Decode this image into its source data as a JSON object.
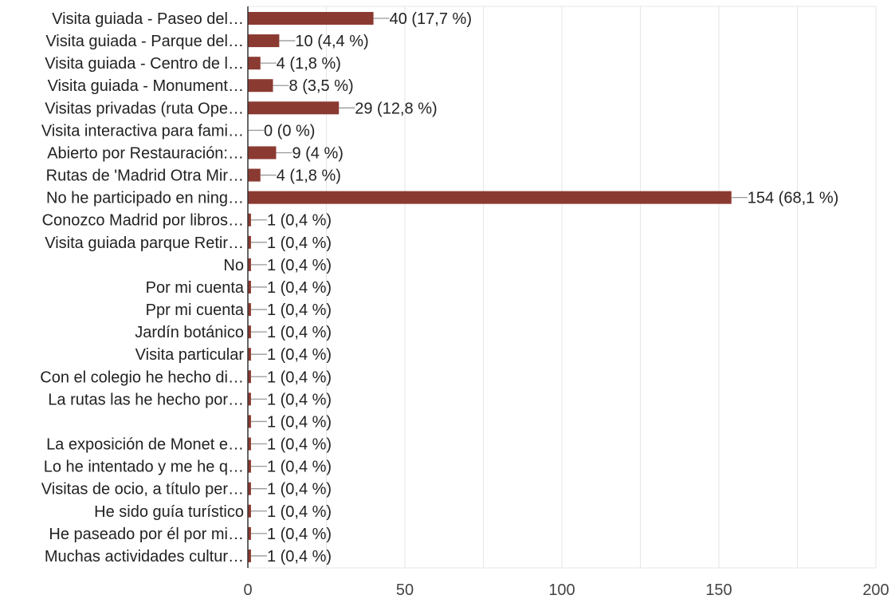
{
  "chart_data": {
    "type": "bar",
    "orientation": "horizontal",
    "categories": [
      "Visita guiada - Paseo del…",
      "Visita guiada - Parque del…",
      "Visita guiada - Centro de l…",
      "Visita guiada - Monument…",
      "Visitas privadas (ruta Ope…",
      "Visita interactiva para fami…",
      "Abierto por Restauración:…",
      "Rutas de 'Madrid Otra Mir…",
      "No he participado en ning…",
      "Conozco Madrid por libros…",
      "Visita guiada parque Retir…",
      "No",
      "Por mi cuenta",
      "Ppr mi cuenta",
      "Jardín botánico",
      "Visita particular",
      "Con el colegio he hecho di…",
      "La rutas las he hecho por…",
      "",
      "La exposición de Monet e…",
      "Lo he intentado y me he q…",
      "Visitas de ocio, a título per…",
      "He sido guía turístico",
      "He paseado por él por mi…",
      "Muchas actividades cultur…"
    ],
    "values": [
      40,
      10,
      4,
      8,
      29,
      0,
      9,
      4,
      154,
      1,
      1,
      1,
      1,
      1,
      1,
      1,
      1,
      1,
      1,
      1,
      1,
      1,
      1,
      1,
      1
    ],
    "value_labels": [
      "40 (17,7 %)",
      "10 (4,4 %)",
      "4 (1,8 %)",
      "8 (3,5 %)",
      "29 (12,8 %)",
      "0 (0 %)",
      "9 (4 %)",
      "4 (1,8 %)",
      "154 (68,1 %)",
      "1 (0,4 %)",
      "1 (0,4 %)",
      "1 (0,4 %)",
      "1 (0,4 %)",
      "1 (0,4 %)",
      "1 (0,4 %)",
      "1 (0,4 %)",
      "1 (0,4 %)",
      "1 (0,4 %)",
      "1 (0,4 %)",
      "1 (0,4 %)",
      "1 (0,4 %)",
      "1 (0,4 %)",
      "1 (0,4 %)",
      "1 (0,4 %)",
      "1 (0,4 %)"
    ],
    "xlim": [
      0,
      200
    ],
    "xticks": [
      0,
      50,
      100,
      150,
      200
    ],
    "xtick_labels": [
      "0",
      "50",
      "100",
      "150",
      "200"
    ],
    "grid": true,
    "bar_color": "#8b3a32",
    "title": "",
    "xlabel": "",
    "ylabel": ""
  }
}
